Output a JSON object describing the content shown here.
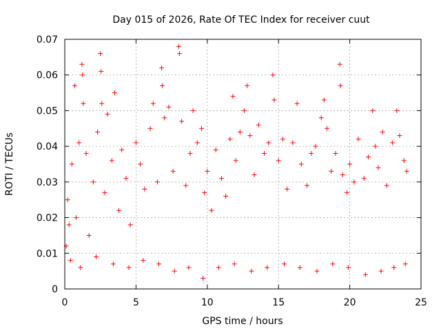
{
  "chart_data": {
    "type": "scatter",
    "title": "Day 015 of 2026, Rate Of TEC Index for receiver cuut",
    "xlabel": "GPS time / hours",
    "ylabel": "ROTI / TECUs",
    "xlim": [
      0,
      25
    ],
    "ylim": [
      0,
      0.07
    ],
    "xticks": [
      0,
      5,
      10,
      15,
      20,
      25
    ],
    "yticks": [
      0,
      0.01,
      0.02,
      0.03,
      0.04,
      0.05,
      0.06,
      0.07
    ],
    "xtick_labels": [
      "0",
      "5",
      "10",
      "15",
      "20",
      "25"
    ],
    "ytick_labels": [
      "0",
      "0.01",
      "0.02",
      "0.03",
      "0.04",
      "0.05",
      "0.06",
      "0.07"
    ],
    "grid": true,
    "marker": "+",
    "color": "#ff0000",
    "series": [
      {
        "points": [
          [
            0.1,
            0.012
          ],
          [
            0.2,
            0.025
          ],
          [
            0.3,
            0.018
          ],
          [
            0.5,
            0.035
          ],
          [
            0.7,
            0.057
          ],
          [
            0.8,
            0.02
          ],
          [
            1.0,
            0.041
          ],
          [
            1.2,
            0.063
          ],
          [
            1.25,
            0.06
          ],
          [
            1.3,
            0.052
          ],
          [
            1.5,
            0.038
          ],
          [
            1.7,
            0.015
          ],
          [
            2.0,
            0.03
          ],
          [
            2.3,
            0.044
          ],
          [
            2.5,
            0.066
          ],
          [
            2.55,
            0.061
          ],
          [
            2.6,
            0.052
          ],
          [
            2.8,
            0.027
          ],
          [
            3.0,
            0.049
          ],
          [
            3.3,
            0.036
          ],
          [
            3.5,
            0.055
          ],
          [
            3.8,
            0.022
          ],
          [
            4.0,
            0.039
          ],
          [
            4.3,
            0.031
          ],
          [
            4.6,
            0.018
          ],
          [
            5.0,
            0.041
          ],
          [
            5.3,
            0.035
          ],
          [
            5.6,
            0.028
          ],
          [
            6.0,
            0.045
          ],
          [
            6.2,
            0.052
          ],
          [
            6.5,
            0.03
          ],
          [
            6.8,
            0.062
          ],
          [
            6.85,
            0.057
          ],
          [
            7.0,
            0.048
          ],
          [
            7.3,
            0.051
          ],
          [
            7.6,
            0.033
          ],
          [
            8.0,
            0.068
          ],
          [
            8.05,
            0.066
          ],
          [
            8.2,
            0.047
          ],
          [
            8.5,
            0.029
          ],
          [
            8.8,
            0.038
          ],
          [
            9.0,
            0.05
          ],
          [
            9.3,
            0.041
          ],
          [
            9.6,
            0.045
          ],
          [
            9.8,
            0.027
          ],
          [
            10.0,
            0.033
          ],
          [
            10.3,
            0.022
          ],
          [
            10.6,
            0.039
          ],
          [
            11.0,
            0.031
          ],
          [
            11.3,
            0.026
          ],
          [
            11.6,
            0.042
          ],
          [
            11.8,
            0.054
          ],
          [
            12.0,
            0.036
          ],
          [
            12.3,
            0.044
          ],
          [
            12.6,
            0.05
          ],
          [
            12.8,
            0.057
          ],
          [
            13.0,
            0.043
          ],
          [
            13.3,
            0.032
          ],
          [
            13.6,
            0.046
          ],
          [
            14.0,
            0.038
          ],
          [
            14.3,
            0.041
          ],
          [
            14.6,
            0.06
          ],
          [
            14.7,
            0.053
          ],
          [
            15.0,
            0.036
          ],
          [
            15.3,
            0.042
          ],
          [
            15.6,
            0.028
          ],
          [
            16.0,
            0.041
          ],
          [
            16.3,
            0.052
          ],
          [
            16.6,
            0.035
          ],
          [
            17.0,
            0.029
          ],
          [
            17.3,
            0.038
          ],
          [
            17.6,
            0.04
          ],
          [
            18.0,
            0.048
          ],
          [
            18.2,
            0.053
          ],
          [
            18.4,
            0.045
          ],
          [
            18.7,
            0.033
          ],
          [
            19.0,
            0.038
          ],
          [
            19.3,
            0.063
          ],
          [
            19.35,
            0.057
          ],
          [
            19.5,
            0.032
          ],
          [
            19.8,
            0.027
          ],
          [
            20.0,
            0.035
          ],
          [
            20.3,
            0.03
          ],
          [
            20.6,
            0.042
          ],
          [
            21.0,
            0.031
          ],
          [
            21.3,
            0.037
          ],
          [
            21.6,
            0.05
          ],
          [
            21.8,
            0.04
          ],
          [
            22.0,
            0.034
          ],
          [
            22.3,
            0.044
          ],
          [
            22.6,
            0.029
          ],
          [
            23.0,
            0.041
          ],
          [
            23.3,
            0.05
          ],
          [
            23.5,
            0.043
          ],
          [
            23.8,
            0.036
          ],
          [
            24.0,
            0.033
          ],
          [
            0.4,
            0.008
          ],
          [
            1.1,
            0.006
          ],
          [
            2.2,
            0.009
          ],
          [
            3.4,
            0.007
          ],
          [
            4.5,
            0.006
          ],
          [
            5.5,
            0.008
          ],
          [
            6.6,
            0.007
          ],
          [
            7.7,
            0.005
          ],
          [
            8.7,
            0.006
          ],
          [
            9.7,
            0.003
          ],
          [
            10.8,
            0.006
          ],
          [
            11.9,
            0.007
          ],
          [
            13.1,
            0.005
          ],
          [
            14.2,
            0.006
          ],
          [
            15.4,
            0.007
          ],
          [
            16.5,
            0.006
          ],
          [
            17.7,
            0.005
          ],
          [
            18.8,
            0.007
          ],
          [
            19.9,
            0.006
          ],
          [
            21.1,
            0.004
          ],
          [
            22.2,
            0.005
          ],
          [
            23.1,
            0.006
          ],
          [
            23.9,
            0.007
          ]
        ]
      }
    ]
  }
}
